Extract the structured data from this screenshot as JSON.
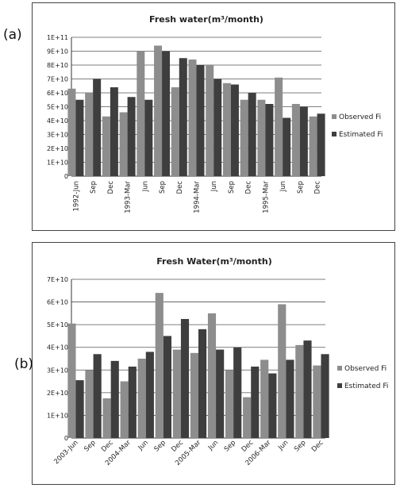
{
  "panels": {
    "a": "(a)",
    "b": "(b)"
  },
  "chart_data": [
    {
      "type": "bar",
      "title": "Fresh water(m³/month)",
      "ylim": [
        0,
        100000000000.0
      ],
      "yticks": [
        "0",
        "1E+10",
        "2E+10",
        "3E+10",
        "4E+10",
        "5E+10",
        "6E+10",
        "7E+10",
        "8E+10",
        "9E+10",
        "1E+11"
      ],
      "grid": true,
      "legend_position": "right",
      "categories": [
        "1992-Jun",
        "",
        "Sep",
        "",
        "Dec",
        "",
        "1993-Mar",
        "",
        "Jun",
        "",
        "Sep",
        "",
        "Dec",
        "",
        "1994-Mar",
        "",
        "Jun",
        "",
        "Sep",
        "",
        "Dec",
        "",
        "1995-Mar",
        "",
        "Jun",
        "",
        "Sep",
        "",
        "Dec"
      ],
      "series": [
        {
          "name": "Observed Fi",
          "color": "#8d8d8d",
          "values": [
            63000000000.0,
            0,
            60000000000.0,
            0,
            43000000000.0,
            0,
            46000000000.0,
            0,
            90000000000.0,
            0,
            94000000000.0,
            0,
            64000000000.0,
            0,
            84000000000.0,
            0,
            80000000000.0,
            0,
            67000000000.0,
            0,
            55000000000.0,
            0,
            55000000000.0,
            0,
            71000000000.0,
            0,
            52000000000.0,
            0,
            43000000000.0
          ]
        },
        {
          "name": "Estimated Fi",
          "color": "#3e3e3e",
          "values": [
            55000000000.0,
            0,
            70000000000.0,
            0,
            64000000000.0,
            0,
            57000000000.0,
            0,
            55000000000.0,
            0,
            90000000000.0,
            0,
            85000000000.0,
            0,
            80000000000.0,
            0,
            70000000000.0,
            0,
            66000000000.0,
            0,
            60000000000.0,
            0,
            52000000000.0,
            0,
            42000000000.0,
            0,
            50000000000.0,
            0,
            45000000000.0
          ]
        }
      ]
    },
    {
      "type": "bar",
      "title": "Fresh Water(m³/month)",
      "ylim": [
        0,
        70000000000.0
      ],
      "yticks": [
        "0",
        "1E+10",
        "2E+10",
        "3E+10",
        "4E+10",
        "5E+10",
        "6E+10",
        "7E+10"
      ],
      "grid": true,
      "legend_position": "right",
      "categories": [
        "2003-Jun",
        "",
        "Sep",
        "",
        "Dec",
        "",
        "2004-Mar",
        "",
        "Jun",
        "",
        "Sep",
        "",
        "Dec",
        "",
        "2005-Mar",
        "",
        "Jun",
        "",
        "Sep",
        "",
        "Dec",
        "",
        "2006-Mar",
        "",
        "Jun",
        "",
        "Sep",
        "",
        "Dec"
      ],
      "series": [
        {
          "name": "Observed Fi",
          "color": "#8d8d8d",
          "values": [
            50500000000.0,
            0,
            30000000000.0,
            0,
            17500000000.0,
            0,
            25000000000.0,
            0,
            35000000000.0,
            0,
            64000000000.0,
            0,
            39000000000.0,
            0,
            37500000000.0,
            0,
            55000000000.0,
            0,
            30000000000.0,
            0,
            18000000000.0,
            0,
            34500000000.0,
            0,
            59000000000.0,
            0,
            41000000000.0,
            0,
            32000000000.0
          ]
        },
        {
          "name": "Estimated Fi",
          "color": "#3e3e3e",
          "values": [
            25500000000.0,
            0,
            37000000000.0,
            0,
            34000000000.0,
            0,
            31500000000.0,
            0,
            38000000000.0,
            0,
            45000000000.0,
            0,
            52500000000.0,
            0,
            48000000000.0,
            0,
            39000000000.0,
            0,
            40000000000.0,
            0,
            31500000000.0,
            0,
            28500000000.0,
            0,
            34500000000.0,
            0,
            43000000000.0,
            0,
            37000000000.0
          ]
        }
      ]
    }
  ]
}
